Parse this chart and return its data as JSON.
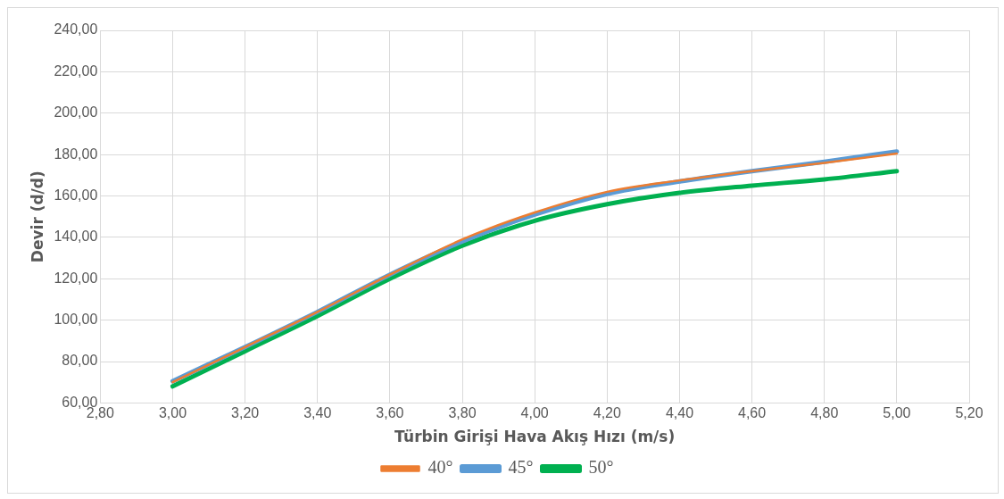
{
  "chart_data": {
    "type": "line",
    "xlabel": "Türbin Girişi Hava Akış Hızı (m/s)",
    "ylabel": "Devir (d/d)",
    "x": [
      3.0,
      3.2,
      3.4,
      3.6,
      3.8,
      4.0,
      4.2,
      4.4,
      4.6,
      4.8,
      5.0
    ],
    "series": [
      {
        "name": "40°",
        "color": "#ed7d31",
        "values": [
          70,
          87,
          104,
          122,
          139,
          152,
          162,
          167.5,
          172,
          176,
          180.5
        ]
      },
      {
        "name": "45°",
        "color": "#5b9bd5",
        "values": [
          70.5,
          87,
          104,
          122,
          138,
          151,
          161,
          167,
          172,
          176.5,
          181.5
        ]
      },
      {
        "name": "50°",
        "color": "#00b050",
        "values": [
          68,
          85,
          102,
          120,
          136,
          148,
          156,
          161.5,
          165,
          168,
          172
        ]
      }
    ],
    "xlim": [
      2.8,
      5.2
    ],
    "xticks": [
      {
        "value": 2.8,
        "label": "2,80"
      },
      {
        "value": 3.0,
        "label": "3,00"
      },
      {
        "value": 3.2,
        "label": "3,20"
      },
      {
        "value": 3.4,
        "label": "3,40"
      },
      {
        "value": 3.6,
        "label": "3,60"
      },
      {
        "value": 3.8,
        "label": "3,80"
      },
      {
        "value": 4.0,
        "label": "4,00"
      },
      {
        "value": 4.2,
        "label": "4,20"
      },
      {
        "value": 4.4,
        "label": "4,40"
      },
      {
        "value": 4.6,
        "label": "4,60"
      },
      {
        "value": 4.8,
        "label": "4,80"
      },
      {
        "value": 5.0,
        "label": "5,00"
      },
      {
        "value": 5.2,
        "label": "5,20"
      }
    ],
    "ylim": [
      60,
      240
    ],
    "yticks": [
      {
        "value": 60,
        "label": "60,00"
      },
      {
        "value": 80,
        "label": "80,00"
      },
      {
        "value": 100,
        "label": "100,00"
      },
      {
        "value": 120,
        "label": "120,00"
      },
      {
        "value": 140,
        "label": "140,00"
      },
      {
        "value": 160,
        "label": "160,00"
      },
      {
        "value": 180,
        "label": "180,00"
      },
      {
        "value": 200,
        "label": "200,00"
      },
      {
        "value": 220,
        "label": "220,00"
      },
      {
        "value": 240,
        "label": "240,00"
      }
    ],
    "grid": true,
    "legend": "bottom",
    "marker": "none",
    "line_style": "solid"
  }
}
